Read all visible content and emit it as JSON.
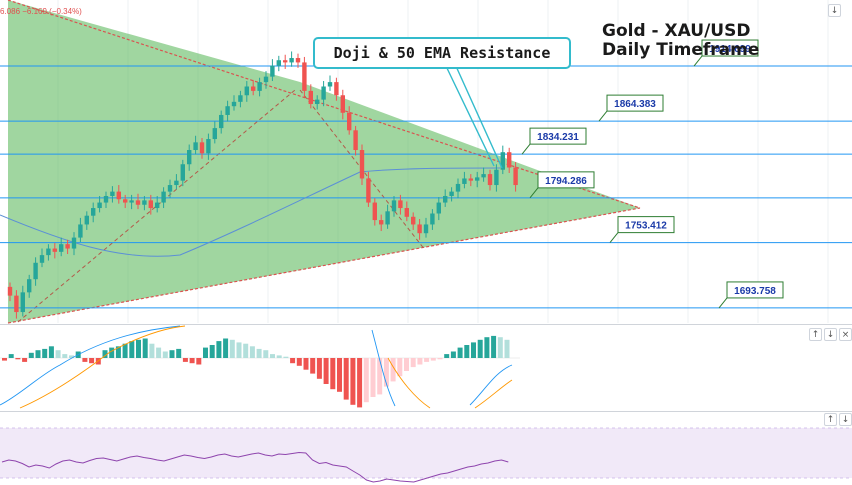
{
  "header": {
    "ticker_text": "6.086  −6.169 (−0.34%)"
  },
  "title": {
    "line1": "Gold - XAU/USD",
    "line2": "Daily Timeframe"
  },
  "annotation": {
    "text": "Doji & 50 EMA Resistance"
  },
  "toolbar": {
    "panel_up_icon": "arrow-up-icon",
    "panel_down_icon": "arrow-down-icon",
    "panel_close_icon": "close-icon",
    "top_arrow_icon": "arrow-down-icon"
  },
  "chart_data": [
    {
      "type": "candlestick",
      "title": "Gold - XAU/USD",
      "subtitle": "Daily Timeframe",
      "levels": [
        {
          "label": "1914.699",
          "value": 1914.699
        },
        {
          "label": "1864.383",
          "value": 1864.383
        },
        {
          "label": "1834.231",
          "value": 1834.231
        },
        {
          "label": "1794.286",
          "value": 1794.286
        },
        {
          "label": "1753.412",
          "value": 1753.412
        },
        {
          "label": "1693.758",
          "value": 1693.758
        }
      ],
      "ylim": [
        1680,
        1975
      ],
      "closes": [
        1705,
        1690,
        1708,
        1720,
        1735,
        1742,
        1748,
        1745,
        1752,
        1748,
        1758,
        1770,
        1778,
        1785,
        1790,
        1796,
        1800,
        1793,
        1790,
        1792,
        1788,
        1792,
        1785,
        1790,
        1800,
        1806,
        1810,
        1825,
        1838,
        1845,
        1835,
        1848,
        1858,
        1870,
        1878,
        1882,
        1888,
        1896,
        1892,
        1900,
        1905,
        1915,
        1920,
        1918,
        1922,
        1918,
        1892,
        1880,
        1884,
        1896,
        1900,
        1888,
        1872,
        1856,
        1838,
        1812,
        1790,
        1774,
        1770,
        1782,
        1792,
        1785,
        1777,
        1770,
        1762,
        1770,
        1780,
        1790,
        1796,
        1800,
        1807,
        1812,
        1810,
        1813,
        1816,
        1806,
        1820,
        1836,
        1822,
        1806
      ],
      "overlay_colors": {
        "bull": "#26a69a",
        "bear": "#ef5350",
        "wedge_fill": "#5cb85c",
        "wedge_line": "#d9534f",
        "level_line": "#2196f3",
        "ema": "#5b8fd6"
      }
    },
    {
      "type": "bar",
      "title": "",
      "values": [
        -2,
        3,
        -1,
        -3,
        4,
        6,
        7,
        9,
        6,
        3,
        2,
        5,
        -3,
        -4,
        -5,
        6,
        8,
        9,
        11,
        13,
        14,
        15,
        11,
        8,
        5,
        6,
        7,
        -3,
        -4,
        -5,
        8,
        10,
        13,
        15,
        14,
        12,
        11,
        9,
        7,
        6,
        3,
        2,
        1,
        -4,
        -6,
        -9,
        -12,
        -16,
        -20,
        -24,
        -26,
        -32,
        -36,
        -38,
        -34,
        -30,
        -28,
        -22,
        -18,
        -14,
        -10,
        -7,
        -5,
        -3,
        -2,
        -1,
        3,
        5,
        8,
        10,
        12,
        14,
        16,
        17,
        16,
        14
      ],
      "colors": {
        "pos_strong": "#26a69a",
        "pos_weak": "#b2dfdb",
        "neg_strong": "#ef5350",
        "neg_weak": "#ffcdd2"
      }
    },
    {
      "type": "line",
      "title": "",
      "values": [
        48,
        52,
        50,
        45,
        38,
        42,
        40,
        36,
        44,
        50,
        52,
        48,
        46,
        51,
        55,
        56,
        53,
        50,
        54,
        58,
        60,
        57,
        55,
        52,
        50,
        54,
        58,
        62,
        60,
        57,
        55,
        58,
        62,
        64,
        60,
        58,
        61,
        64,
        66,
        62,
        60,
        64,
        63,
        65,
        67,
        66,
        52,
        45,
        47,
        42,
        40,
        38,
        30,
        22,
        12,
        8,
        10,
        14,
        12,
        10,
        9,
        8,
        12,
        16,
        20,
        24,
        26,
        30,
        34,
        38,
        40,
        44,
        46,
        50,
        52,
        48
      ]
    }
  ]
}
